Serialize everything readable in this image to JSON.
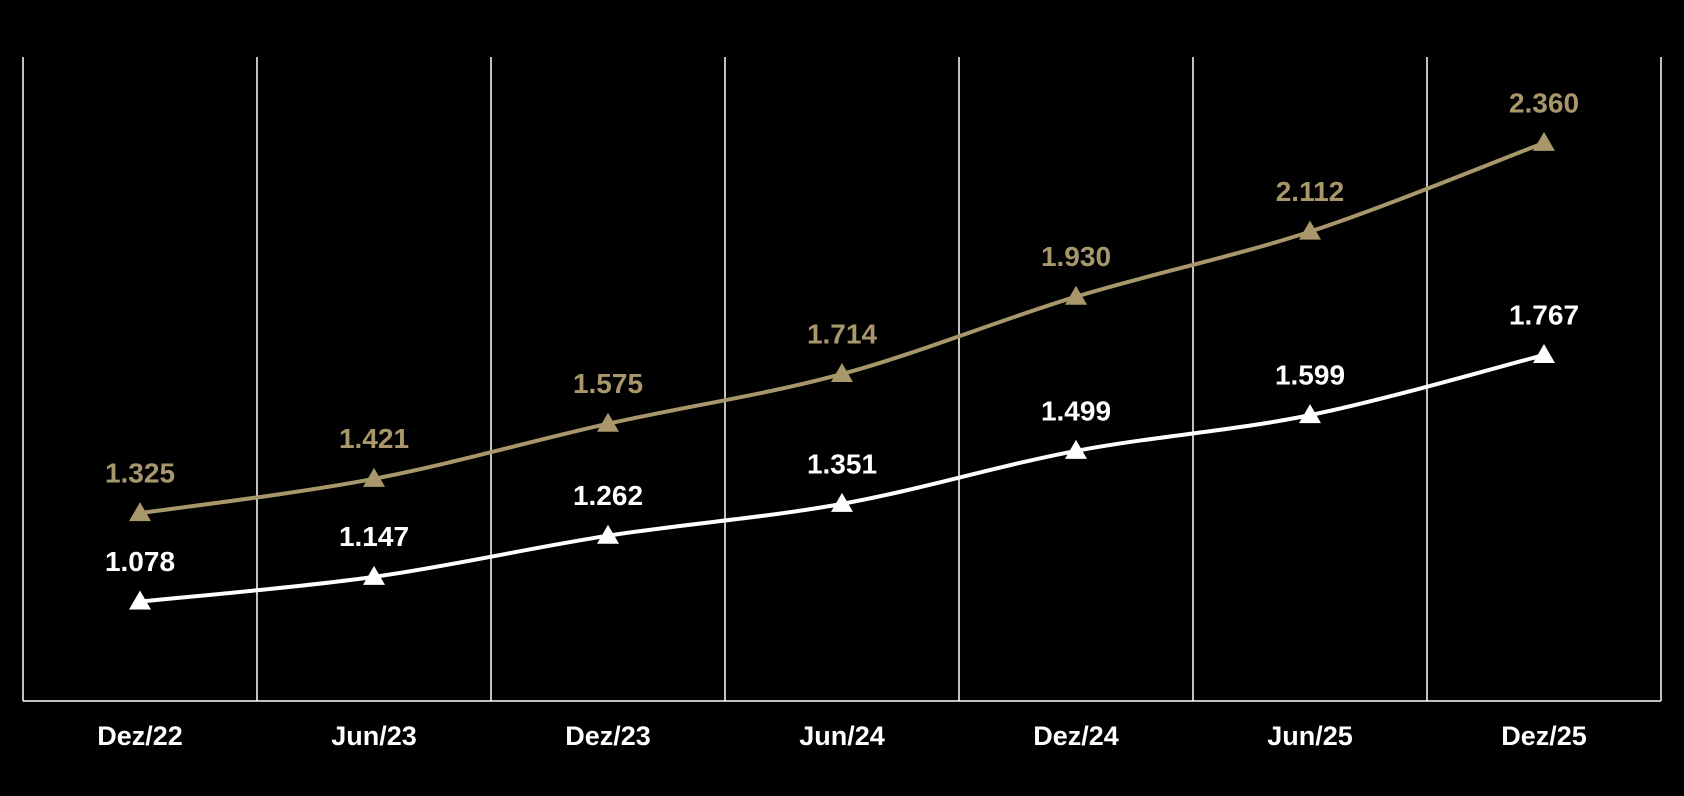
{
  "chart_data": {
    "type": "line",
    "categories": [
      "Dez/22",
      "Jun/23",
      "Dez/23",
      "Jun/24",
      "Dez/24",
      "Jun/25",
      "Dez/25"
    ],
    "series": [
      {
        "color": "#a8976b",
        "values": [
          1325,
          1421,
          1575,
          1714,
          1930,
          2112,
          2360
        ],
        "value_labels": [
          "1.325",
          "1.421",
          "1.575",
          "1.714",
          "1.930",
          "2.112",
          "2.360"
        ]
      },
      {
        "color": "#ffffff",
        "values": [
          1078,
          1147,
          1262,
          1351,
          1499,
          1599,
          1767
        ],
        "value_labels": [
          "1.078",
          "1.147",
          "1.262",
          "1.351",
          "1.499",
          "1.599",
          "1.767"
        ]
      }
    ],
    "ylim": [
      800,
      2600
    ],
    "marker": "triangle"
  }
}
